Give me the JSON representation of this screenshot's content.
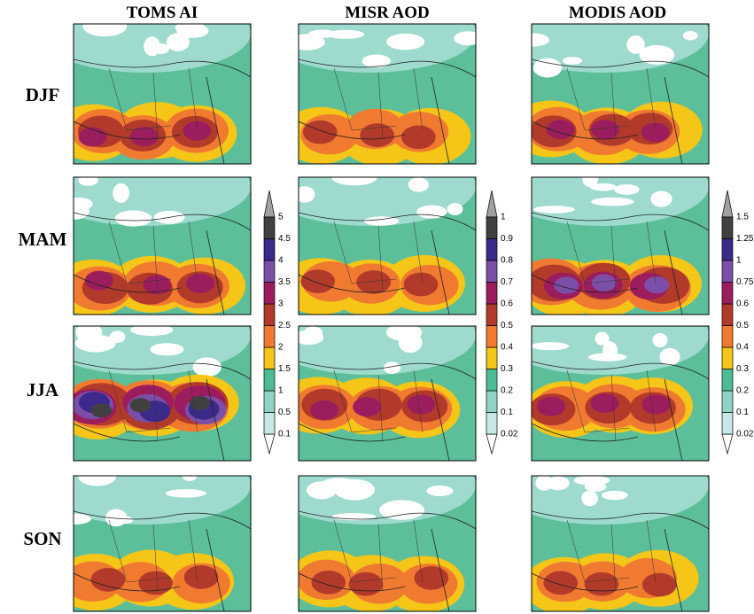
{
  "column_titles": [
    "TOMS AI",
    "MISR AOD",
    "MODIS AOD"
  ],
  "row_labels": [
    "DJF",
    "MAM",
    "JJA",
    "SON"
  ],
  "colorbars": [
    {
      "labels": [
        "0.1",
        "0.5",
        "1",
        "1.5",
        "2",
        "2.5",
        "3",
        "3.5",
        "4",
        "4.5",
        "5"
      ]
    },
    {
      "labels": [
        "0.02",
        "0.1",
        "0.2",
        "0.3",
        "0.4",
        "0.5",
        "0.6",
        "0.7",
        "0.8",
        "0.9",
        "1"
      ]
    },
    {
      "labels": [
        "0.02",
        "0.1",
        "0.2",
        "0.3",
        "0.4",
        "0.5",
        "0.6",
        "0.75",
        "1",
        "1.25",
        "1.5"
      ]
    }
  ]
}
